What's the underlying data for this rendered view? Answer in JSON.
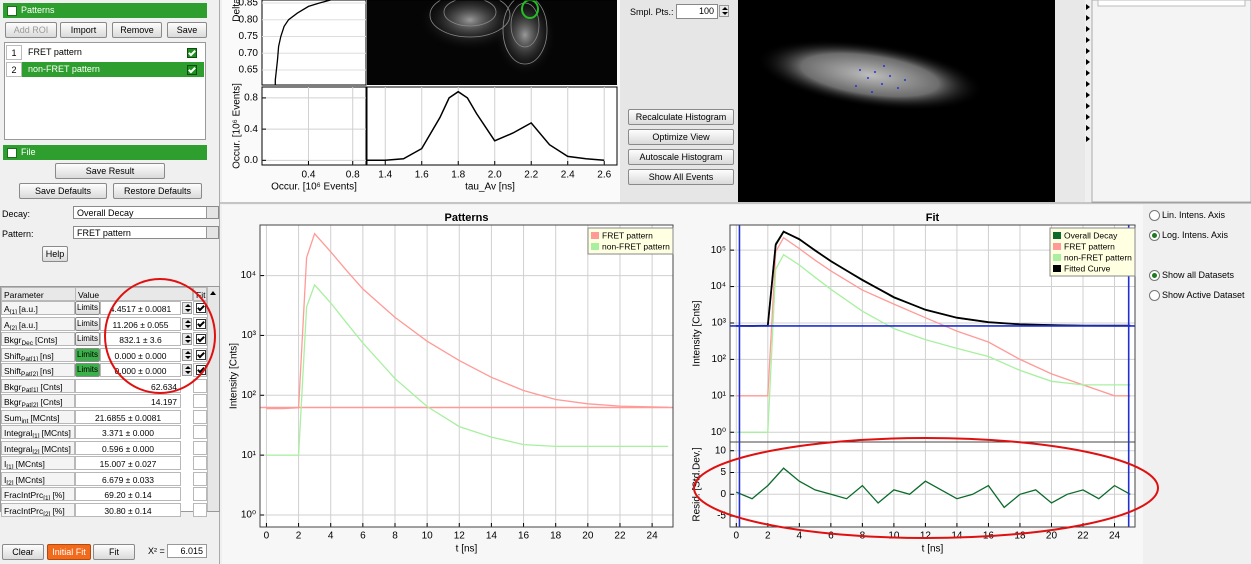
{
  "patterns_panel": {
    "title": "Patterns",
    "buttons": [
      "Add ROI",
      "Import",
      "Remove",
      "Save"
    ],
    "rows": [
      {
        "index": 1,
        "name": "FRET pattern",
        "checked": true
      },
      {
        "index": 2,
        "name": "non-FRET pattern",
        "checked": true
      }
    ]
  },
  "file_panel": {
    "title": "File",
    "buttons": [
      "Save Result",
      "Save Defaults",
      "Restore Defaults"
    ]
  },
  "selectors": {
    "decay_label": "Decay:",
    "decay_value": "Overall Decay",
    "pattern_label": "Pattern:",
    "pattern_value": "FRET pattern",
    "help": "Help"
  },
  "parameter_table": {
    "headers": [
      "Parameter",
      "Value",
      "Fit"
    ],
    "limits_label": "Limits",
    "rows": [
      {
        "name": "A",
        "sub": "[1]",
        "unit": "[a.u.]",
        "value": "4.4517 ± 0.0081",
        "limits": true,
        "limits_active": false,
        "fit": true
      },
      {
        "name": "A",
        "sub": "[2]",
        "unit": "[a.u.]",
        "value": "11.206 ± 0.055",
        "limits": true,
        "limits_active": false,
        "fit": true
      },
      {
        "name": "Bkgr",
        "sub": "Dec",
        "unit": "[Cnts]",
        "value": "832.1 ± 3.6",
        "limits": true,
        "limits_active": false,
        "fit": true
      },
      {
        "name": "Shift",
        "sub": "Pat[1]",
        "unit": "[ns]",
        "value": "0.000 ± 0.000",
        "limits": true,
        "limits_active": true,
        "fit": true
      },
      {
        "name": "Shift",
        "sub": "Pat[2]",
        "unit": "[ns]",
        "value": "0.000 ± 0.000",
        "limits": true,
        "limits_active": true,
        "fit": true
      },
      {
        "name": "Bkgr",
        "sub": "Pat[1]",
        "unit": "[Cnts]",
        "value": 62.634,
        "limits": false,
        "limits_active": false,
        "fit": false
      },
      {
        "name": "Bkgr",
        "sub": "Pat[2]",
        "unit": "[Cnts]",
        "value": 14.197,
        "limits": false,
        "limits_active": false,
        "fit": false
      },
      {
        "name": "Sum",
        "sub": "int",
        "unit": "[MCnts]",
        "value": "21.6855 ± 0.0081",
        "limits": false,
        "limits_active": false,
        "fit": false
      },
      {
        "name": "Integral",
        "sub": "[1]",
        "unit": "[MCnts]",
        "value": "3.371 ± 0.000",
        "limits": false,
        "limits_active": false,
        "fit": false
      },
      {
        "name": "Integral",
        "sub": "[2]",
        "unit": "[MCnts]",
        "value": "0.596 ± 0.000",
        "limits": false,
        "limits_active": false,
        "fit": false
      },
      {
        "name": "I",
        "sub": "[1]",
        "unit": "[MCnts]",
        "value": "15.007 ± 0.027",
        "limits": false,
        "limits_active": false,
        "fit": false
      },
      {
        "name": "I",
        "sub": "[2]",
        "unit": "[MCnts]",
        "value": "6.679 ± 0.033",
        "limits": false,
        "limits_active": false,
        "fit": false
      },
      {
        "name": "FracIntPrc",
        "sub": "[1]",
        "unit": "[%]",
        "value": "69.20 ± 0.14",
        "limits": false,
        "limits_active": false,
        "fit": false
      },
      {
        "name": "FracIntPrc",
        "sub": "[2]",
        "unit": "[%]",
        "value": "30.80 ± 0.14",
        "limits": false,
        "limits_active": false,
        "fit": false
      }
    ]
  },
  "fit_controls": {
    "buttons": [
      "Clear",
      "Initial Fit",
      "Fit"
    ],
    "chi2_label": "X² =",
    "chi2_value": 6.015
  },
  "histogram_controls": {
    "sample_points_label": "Smpl. Pts.:",
    "sample_points": 100,
    "buttons": [
      "Recalculate Histogram",
      "Optimize View",
      "Autoscale Histogram",
      "Show All Events"
    ]
  },
  "histogram_view": {
    "delta_label": "Delta",
    "delta_lim": [
      0.605,
      0.859
    ],
    "delta_ticks": [
      0.65,
      {
        "value": 0.7,
        "label": "0.70"
      },
      0.75,
      {
        "value": 0.8,
        "label": "0.80"
      },
      0.85
    ],
    "occurrence_label": "Occur. [10⁶ Events]",
    "occurrence_lim": [
      -0.06,
      0.94
    ],
    "occurrence_ticks": [
      {
        "value": 0,
        "label": "0.0"
      },
      0.4,
      0.8
    ],
    "occurrence_xlim": [
      -0.02,
      0.92
    ],
    "occurrence_xticks": [
      0.4,
      0.8
    ],
    "tau_label": "tau_Av [ns]",
    "tau_lim": [
      1.3,
      2.67
    ],
    "tau_ticks": [
      1.4,
      1.6,
      1.8,
      {
        "value": 2,
        "label": "2.0"
      },
      2.2,
      2.4,
      2.6
    ],
    "delta_profile": {
      "delta": [
        0.605,
        0.62,
        0.65,
        0.68,
        0.72,
        0.75,
        0.78,
        0.8,
        0.82,
        0.84,
        0.85,
        0.859
      ],
      "occurrence": [
        0.1,
        0.1,
        0.11,
        0.12,
        0.13,
        0.15,
        0.18,
        0.22,
        0.3,
        0.4,
        0.5,
        0.6
      ]
    },
    "tau_histogram": {
      "tau": [
        1.3,
        1.4,
        1.5,
        1.6,
        1.7,
        1.75,
        1.8,
        1.85,
        1.9,
        2.0,
        2.1,
        2.2,
        2.3,
        2.4,
        2.5,
        2.6
      ],
      "occurrence": [
        0,
        0,
        0.02,
        0.15,
        0.55,
        0.8,
        0.88,
        0.8,
        0.6,
        0.25,
        0.35,
        0.48,
        0.2,
        0.05,
        0.02,
        0
      ]
    }
  },
  "patterns_chart": {
    "type": "line",
    "title": "Patterns",
    "x_label": "t [ns]",
    "y_label": "Intensity [Cnts]",
    "log_y": true,
    "grid": true,
    "legend": "top-right",
    "x": [
      0,
      1,
      2,
      2.5,
      3,
      4,
      5,
      6,
      8,
      10,
      12,
      14,
      16,
      18,
      20,
      22,
      24,
      25
    ],
    "series": [
      {
        "name": "FRET pattern",
        "color": "#ff9a96",
        "values": [
          60,
          60,
          62,
          20000,
          50000,
          25000,
          12000,
          6000,
          2000,
          800,
          380,
          200,
          120,
          85,
          72,
          66,
          64,
          63
        ]
      },
      {
        "name": "non-FRET pattern",
        "color": "#a8f0a0",
        "values": [
          10,
          10,
          10,
          3000,
          7000,
          3500,
          1600,
          750,
          190,
          65,
          30,
          20,
          15,
          14,
          14,
          14,
          14,
          14
        ]
      }
    ],
    "xlim": [
      -0.4,
      25.3
    ],
    "ylim": [
      0.63,
      70000
    ],
    "xticks": [
      0,
      2,
      4,
      6,
      8,
      10,
      12,
      14,
      16,
      18,
      20,
      22,
      24
    ],
    "yticks": [
      {
        "value": 1,
        "label": "10⁰"
      },
      {
        "value": 10,
        "label": "10¹"
      },
      {
        "value": 100,
        "label": "10²"
      },
      {
        "value": 1000,
        "label": "10³"
      },
      {
        "value": 10000,
        "label": "10⁴"
      }
    ]
  },
  "fit_chart": {
    "type": "line",
    "title": "Fit",
    "x_label": "t [ns]",
    "y_label": "Intensity [Cnts]",
    "log_y": true,
    "grid": true,
    "legend": "top-right",
    "x": [
      0,
      1,
      2,
      2.5,
      3,
      4,
      5,
      6,
      8,
      10,
      12,
      14,
      16,
      18,
      20,
      22,
      24,
      25
    ],
    "series": [
      {
        "name": "Overall Decay",
        "color": "#0b6b2b",
        "values": [
          850,
          820,
          850,
          150000,
          330000,
          195000,
          101000,
          49000,
          15500,
          4900,
          2350,
          1380,
          1060,
          910,
          880,
          845,
          830,
          845
        ]
      },
      {
        "name": "FRET pattern",
        "color": "#ff9a96",
        "values": [
          10,
          10,
          10,
          90000,
          220000,
          110000,
          53000,
          27000,
          8000,
          3300,
          1400,
          600,
          300,
          100,
          40,
          20,
          10,
          10
        ]
      },
      {
        "name": "non-FRET pattern",
        "color": "#a8f0a0",
        "values": [
          1,
          1,
          1,
          30000,
          75000,
          39000,
          18000,
          8400,
          2100,
          700,
          350,
          200,
          120,
          50,
          25,
          20,
          20,
          20
        ]
      },
      {
        "name": "Fitted Curve",
        "color": "#000000",
        "values": [
          832,
          832,
          840,
          140000,
          320000,
          200000,
          98000,
          50000,
          15000,
          5100,
          2300,
          1400,
          1050,
          920,
          870,
          850,
          840,
          840
        ]
      }
    ],
    "fit_range": [
      0.2,
      24.9
    ],
    "background": 832.1,
    "range_color": "#1f2fd0",
    "xlim": [
      -0.4,
      25.3
    ],
    "ylim": [
      0.54,
      490000
    ],
    "xticks": [
      0,
      2,
      4,
      6,
      8,
      10,
      12,
      14,
      16,
      18,
      20,
      22,
      24
    ],
    "yticks": [
      {
        "value": 1,
        "label": "10⁰"
      },
      {
        "value": 10,
        "label": "10¹"
      },
      {
        "value": 100,
        "label": "10²"
      },
      {
        "value": 1000,
        "label": "10³"
      },
      {
        "value": 10000,
        "label": "10⁴"
      },
      {
        "value": 100000,
        "label": "10⁵"
      }
    ],
    "residuals": {
      "y_label": "Resid. [Std.Dev.]",
      "color": "#0b6b2b",
      "ylim": [
        -7.5,
        12
      ],
      "yticks": [
        -5,
        0,
        5,
        10
      ],
      "x": [
        0,
        1,
        2,
        3,
        4,
        5,
        6,
        7,
        8,
        9,
        10,
        11,
        12,
        13,
        14,
        15,
        16,
        17,
        18,
        19,
        20,
        21,
        22,
        23,
        24,
        25
      ],
      "values": [
        0.5,
        -1,
        2,
        6,
        3,
        1,
        0,
        -1,
        2,
        -2,
        1,
        0,
        3,
        1,
        -1,
        0,
        2,
        -3,
        0,
        1,
        -2,
        0,
        1,
        -1,
        2,
        0
      ]
    }
  },
  "display_options": [
    {
      "label": "Lin. Intens. Axis",
      "selected": false
    },
    {
      "label": "Log. Intens. Axis",
      "selected": true
    },
    {
      "label": "Show all Datasets",
      "selected": true
    },
    {
      "label": "Show Active Dataset",
      "selected": false
    }
  ]
}
